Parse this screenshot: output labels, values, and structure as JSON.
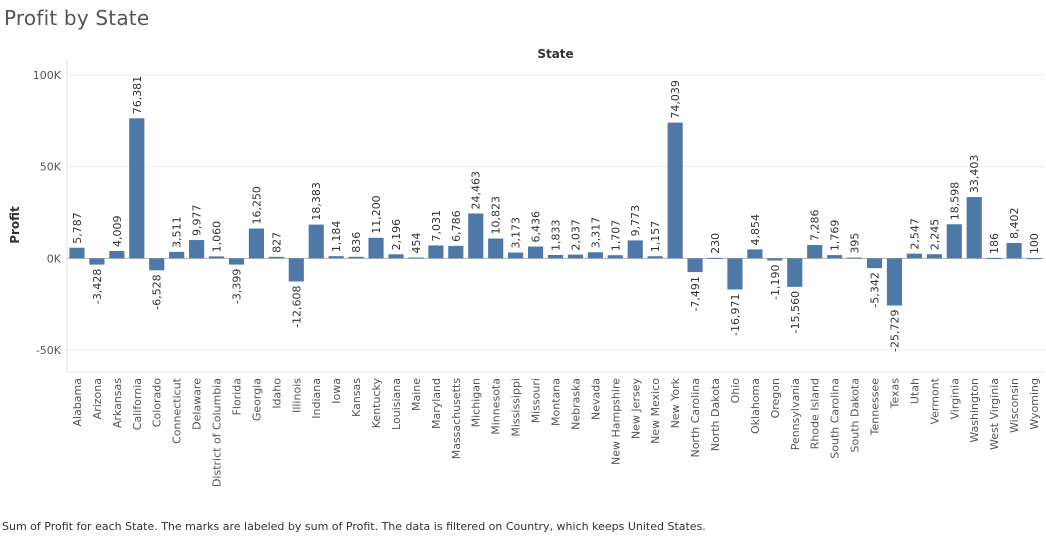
{
  "page": {
    "title": "Profit by State",
    "caption": "Sum of Profit for each State.  The marks are labeled by sum of Profit. The data is filtered on Country, which keeps United States."
  },
  "colors": {
    "bar": "#4e79a7",
    "grid": "#ececec",
    "zero_line": "#b5b5b5",
    "text": "#333333",
    "axis_text": "#555555"
  },
  "chart_data": {
    "type": "bar",
    "title": "Profit by State",
    "column_header": "State",
    "ylabel": "Profit",
    "ylim": [
      -62000,
      106000
    ],
    "y_ticks": [
      -50000,
      0,
      50000,
      100000
    ],
    "y_tick_labels": [
      "-50K",
      "0K",
      "50K",
      "100K"
    ],
    "grid": true,
    "categories": [
      "Alabama",
      "Arizona",
      "Arkansas",
      "California",
      "Colorado",
      "Connecticut",
      "Delaware",
      "District of Columbia",
      "Florida",
      "Georgia",
      "Idaho",
      "Illinois",
      "Indiana",
      "Iowa",
      "Kansas",
      "Kentucky",
      "Louisiana",
      "Maine",
      "Maryland",
      "Massachusetts",
      "Michigan",
      "Minnesota",
      "Mississippi",
      "Missouri",
      "Montana",
      "Nebraska",
      "Nevada",
      "New Hampshire",
      "New Jersey",
      "New Mexico",
      "New York",
      "North Carolina",
      "North Dakota",
      "Ohio",
      "Oklahoma",
      "Oregon",
      "Pennsylvania",
      "Rhode Island",
      "South Carolina",
      "South Dakota",
      "Tennessee",
      "Texas",
      "Utah",
      "Vermont",
      "Virginia",
      "Washington",
      "West Virginia",
      "Wisconsin",
      "Wyoming"
    ],
    "values": [
      5787,
      -3428,
      4009,
      76381,
      -6528,
      3511,
      9977,
      1060,
      -3399,
      16250,
      827,
      -12608,
      18383,
      1184,
      836,
      11200,
      2196,
      454,
      7031,
      6786,
      24463,
      10823,
      3173,
      6436,
      1833,
      2037,
      3317,
      1707,
      9773,
      1157,
      74039,
      -7491,
      230,
      -16971,
      4854,
      -1190,
      -15560,
      7286,
      1769,
      395,
      -5342,
      -25729,
      2547,
      2245,
      18598,
      33403,
      186,
      8402,
      100
    ],
    "value_labels": [
      "5,787",
      "-3,428",
      "4,009",
      "76,381",
      "-6,528",
      "3,511",
      "9,977",
      "1,060",
      "-3,399",
      "16,250",
      "827",
      "-12,608",
      "18,383",
      "1,184",
      "836",
      "11,200",
      "2,196",
      "454",
      "7,031",
      "6,786",
      "24,463",
      "10,823",
      "3,173",
      "6,436",
      "1,833",
      "2,037",
      "3,317",
      "1,707",
      "9,773",
      "1,157",
      "74,039",
      "-7,491",
      "230",
      "-16,971",
      "4,854",
      "-1,190",
      "-15,560",
      "7,286",
      "1,769",
      "395",
      "-5,342",
      "-25,729",
      "2,547",
      "2,245",
      "18,598",
      "33,403",
      "186",
      "8,402",
      "100"
    ]
  }
}
